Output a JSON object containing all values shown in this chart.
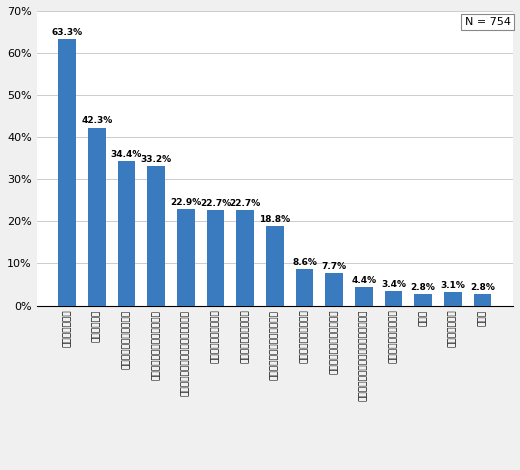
{
  "categories": [
    "元本保証がない",
    "手数料が高い",
    "運用実績がわかりにくい",
    "安心できない公社債に比べて",
    "情報が少ない購入後の運用に関する",
    "利回りがものたりない",
    "種類が多く選択に迷う",
    "面白さに欠ける株式に比べて",
    "なんとなくなじめない",
    "購入手続きがわずらわしい",
    "銀行等の店舗がない近くに証券会社・",
    "クローズド期間がある",
    "その他",
    "よくわからない",
    "無回答"
  ],
  "values": [
    63.3,
    42.3,
    34.4,
    33.2,
    22.9,
    22.7,
    22.7,
    18.8,
    8.6,
    7.7,
    4.4,
    3.4,
    2.8,
    3.1,
    2.8
  ],
  "bar_color": "#3a7abf",
  "ylim": [
    0,
    70
  ],
  "yticks": [
    0,
    10,
    20,
    30,
    40,
    50,
    60,
    70
  ],
  "n_label": "N = 754",
  "value_labels": [
    "63.3%",
    "42.3%",
    "34.4%",
    "33.2%",
    "22.9%",
    "22.7%",
    "22.7%",
    "18.8%",
    "8.6%",
    "7.7%",
    "4.4%",
    "3.4%",
    "2.8%",
    "3.1%",
    "2.8%"
  ],
  "bg_color": "#f0f0f0",
  "plot_bg_color": "#ffffff",
  "grid_color": "#cccccc",
  "label_fontsize": 6.5,
  "value_fontsize": 6.5,
  "n_label_fontsize": 8.0
}
